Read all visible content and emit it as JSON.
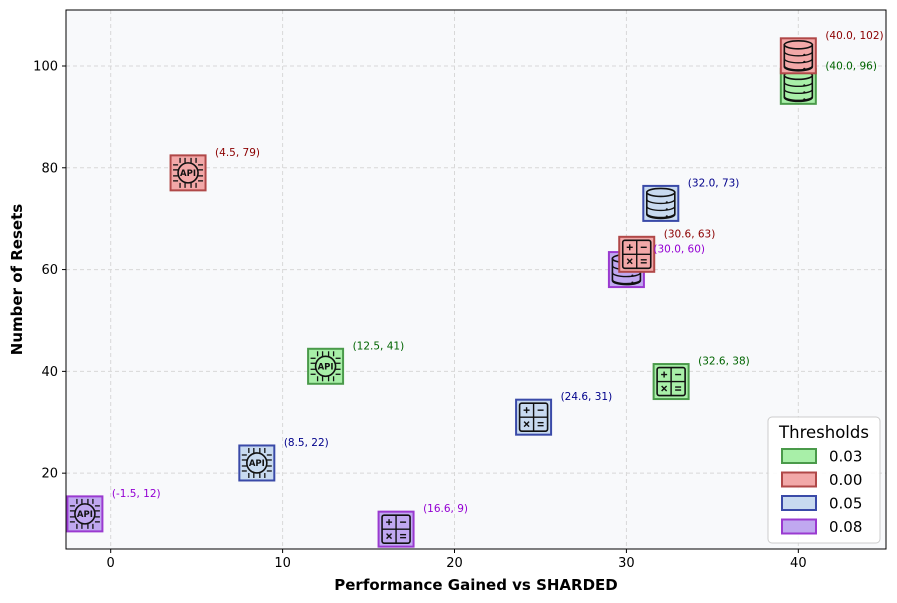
{
  "chart_data": {
    "type": "scatter",
    "xlabel": "Performance Gained vs SHARDED",
    "ylabel": "Number of Resets",
    "xlim": [
      -2.6,
      45.1
    ],
    "ylim": [
      5.1,
      111
    ],
    "xticks": [
      0,
      10,
      20,
      30,
      40
    ],
    "yticks": [
      20,
      40,
      60,
      80,
      100
    ],
    "grid": true,
    "legend": {
      "title": "Thresholds",
      "placement": "lower-right",
      "entries": [
        {
          "label": "0.03",
          "fill": "#a8efa8",
          "edge": "#4a9a4a"
        },
        {
          "label": "0.00",
          "fill": "#f2a8a8",
          "edge": "#b04848"
        },
        {
          "label": "0.05",
          "fill": "#c8daf0",
          "edge": "#3a4aa8"
        },
        {
          "label": "0.08",
          "fill": "#c0a8f0",
          "edge": "#9a3ad0"
        }
      ]
    },
    "points": [
      {
        "x": 40.0,
        "y": 96,
        "label": "(40.0, 96)",
        "group": "0.03",
        "icon": "database-icon",
        "label_color": "#006400"
      },
      {
        "x": 40.0,
        "y": 102,
        "label": "(40.0, 102)",
        "group": "0.00",
        "icon": "database-icon",
        "label_color": "#8b0000"
      },
      {
        "x": 4.5,
        "y": 79,
        "label": "(4.5, 79)",
        "group": "0.00",
        "icon": "api-chip-icon",
        "label_color": "#8b0000"
      },
      {
        "x": 32.0,
        "y": 73,
        "label": "(32.0, 73)",
        "group": "0.05",
        "icon": "database-icon",
        "label_color": "#00008b"
      },
      {
        "x": 30.0,
        "y": 60,
        "label": "(30.0, 60)",
        "group": "0.08",
        "icon": "database-icon",
        "label_color": "#9400d3"
      },
      {
        "x": 30.6,
        "y": 63,
        "label": "(30.6, 63)",
        "group": "0.00",
        "icon": "calculator-icon",
        "label_color": "#8b0000"
      },
      {
        "x": 12.5,
        "y": 41,
        "label": "(12.5, 41)",
        "group": "0.03",
        "icon": "api-chip-icon",
        "label_color": "#006400"
      },
      {
        "x": 32.6,
        "y": 38,
        "label": "(32.6, 38)",
        "group": "0.03",
        "icon": "calculator-icon",
        "label_color": "#006400"
      },
      {
        "x": 24.6,
        "y": 31,
        "label": "(24.6, 31)",
        "group": "0.05",
        "icon": "calculator-icon",
        "label_color": "#00008b"
      },
      {
        "x": 8.5,
        "y": 22,
        "label": "(8.5, 22)",
        "group": "0.05",
        "icon": "api-chip-icon",
        "label_color": "#00008b"
      },
      {
        "x": -1.5,
        "y": 12,
        "label": "(-1.5, 12)",
        "group": "0.08",
        "icon": "api-chip-icon",
        "label_color": "#9400d3"
      },
      {
        "x": 16.6,
        "y": 9,
        "label": "(16.6, 9)",
        "group": "0.08",
        "icon": "calculator-icon",
        "label_color": "#9400d3"
      }
    ]
  }
}
